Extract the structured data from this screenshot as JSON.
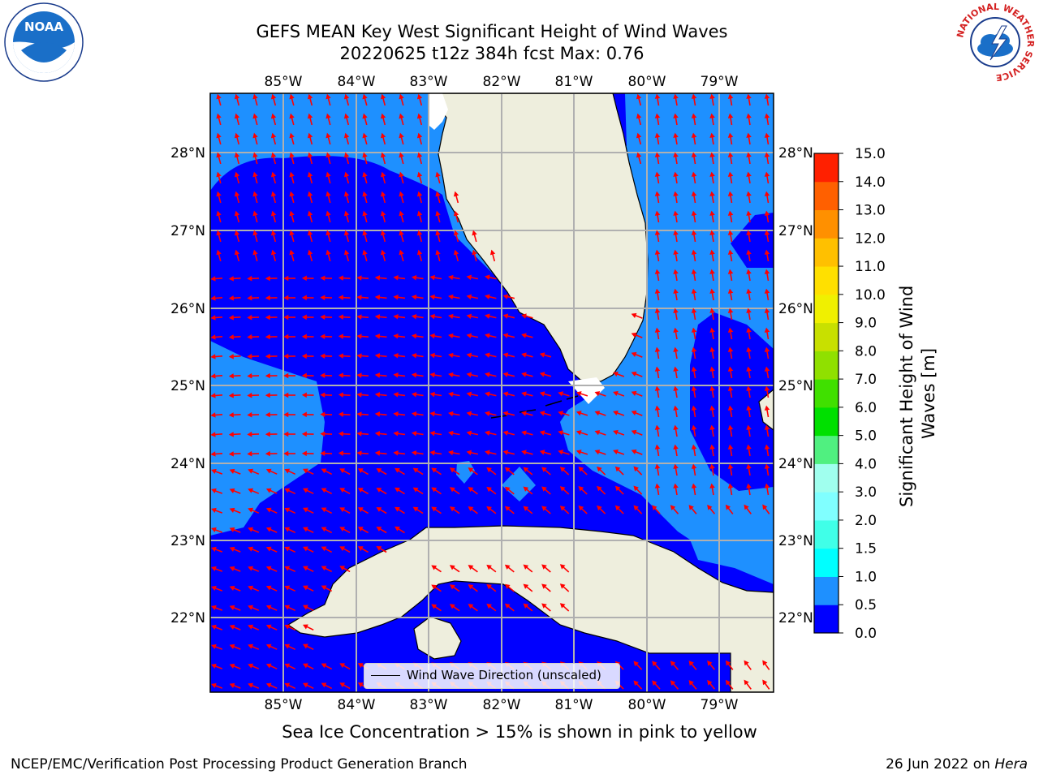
{
  "header": {
    "title_line1": "GEFS MEAN Key West Significant Height of Wind Waves",
    "title_line2": "20220625 t12z 384h fcst   Max: 0.76"
  },
  "logos": {
    "noaa_text": "NOAA",
    "nws_ring_text": "NATIONAL WEATHER SERVICE"
  },
  "map": {
    "lon_ticks": [
      "85°W",
      "84°W",
      "83°W",
      "82°W",
      "81°W",
      "80°W",
      "79°W"
    ],
    "lat_ticks": [
      "28°N",
      "27°N",
      "26°N",
      "25°N",
      "24°N",
      "23°N",
      "22°N"
    ],
    "extent": {
      "lon_min": -86.0,
      "lon_max": -78.3,
      "lat_min": 21.0,
      "lat_max": 28.75
    },
    "colors": {
      "land": "#eeeedd",
      "wave_0_0_5": "#0000ff",
      "wave_0_5_1_0": "#1e90ff",
      "arrow": "#ff0000",
      "grid": "#b0b0b0"
    }
  },
  "legend": {
    "label": "Wind Wave Direction (unscaled)"
  },
  "colorbar": {
    "label": "Significant Height of Wind Waves [m]",
    "levels": [
      "0.0",
      "0.5",
      "1.0",
      "1.5",
      "2.0",
      "3.0",
      "4.0",
      "5.0",
      "6.0",
      "7.0",
      "8.0",
      "9.0",
      "10.0",
      "11.0",
      "12.0",
      "13.0",
      "14.0",
      "15.0"
    ],
    "colors": [
      "#0000ff",
      "#1e90ff",
      "#00ffff",
      "#40ffe8",
      "#80ffff",
      "#a0ffee",
      "#50f080",
      "#00e000",
      "#40e000",
      "#90e000",
      "#c8e000",
      "#f0f000",
      "#ffe000",
      "#ffc000",
      "#ff9000",
      "#ff6000",
      "#ff2000"
    ]
  },
  "footer": {
    "note": "Sea Ice Concentration > 15% is shown in pink to yellow",
    "left": "NCEP/EMC/Verification Post Processing Product Generation Branch",
    "right_prefix": "26 Jun 2022 on ",
    "right_host": "Hera"
  }
}
